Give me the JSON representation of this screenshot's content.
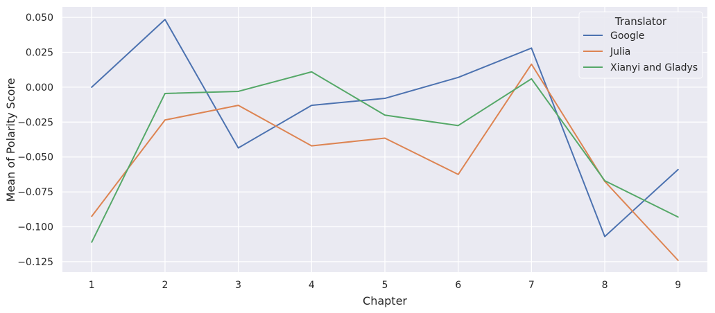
{
  "chart_data": {
    "type": "line",
    "xlabel": "Chapter",
    "ylabel": "Mean of Polarity Score",
    "x": [
      1,
      2,
      3,
      4,
      5,
      6,
      7,
      8,
      9
    ],
    "x_ticks": [
      "1",
      "2",
      "3",
      "4",
      "5",
      "6",
      "7",
      "8",
      "9"
    ],
    "xlim": [
      0.6,
      9.4
    ],
    "y_ticks": [
      0.05,
      0.025,
      0.0,
      -0.025,
      -0.05,
      -0.075,
      -0.1,
      -0.125
    ],
    "y_tick_labels": [
      "0.050",
      "0.025",
      "0.000",
      "−0.025",
      "−0.050",
      "−0.075",
      "−0.100",
      "−0.125"
    ],
    "ylim": [
      -0.1325,
      0.0575
    ],
    "grid": true,
    "background": "#eaeaf2",
    "grid_color": "#ffffff",
    "legend": {
      "title": "Translator",
      "placement": "top-right"
    },
    "series": [
      {
        "name": "Google",
        "color": "#4c72b0",
        "values": [
          0.0,
          0.0485,
          -0.0435,
          -0.013,
          -0.008,
          0.007,
          0.028,
          -0.107,
          -0.059
        ]
      },
      {
        "name": "Julia",
        "color": "#dd8452",
        "values": [
          -0.0925,
          -0.0235,
          -0.013,
          -0.042,
          -0.0365,
          -0.0625,
          0.0165,
          -0.0675,
          -0.124
        ]
      },
      {
        "name": "Xianyi and Gladys",
        "color": "#55a868",
        "values": [
          -0.111,
          -0.0045,
          -0.003,
          0.011,
          -0.02,
          -0.0275,
          0.006,
          -0.067,
          -0.093
        ]
      }
    ]
  }
}
